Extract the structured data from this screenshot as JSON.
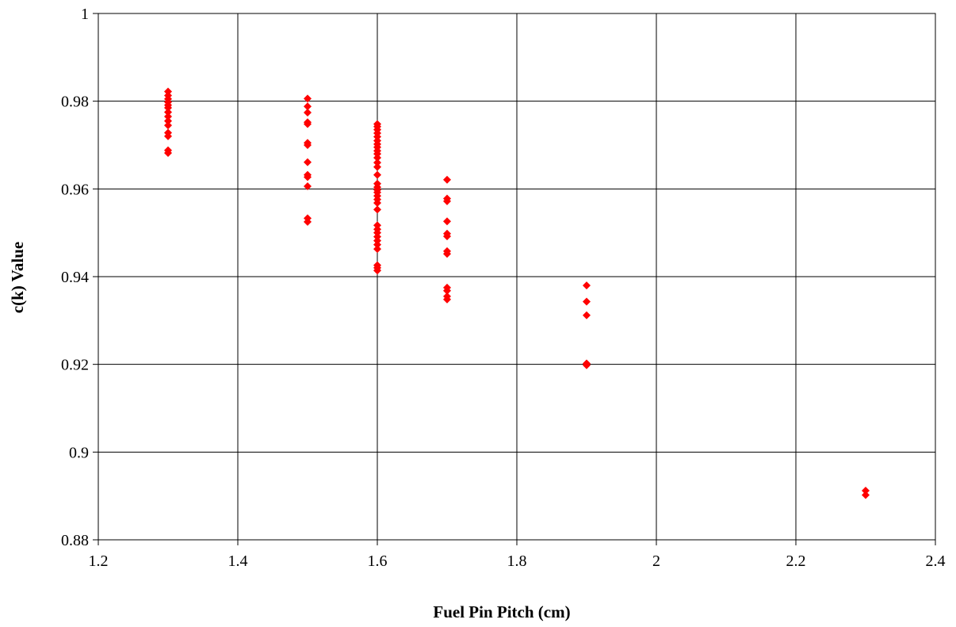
{
  "chart_data": {
    "type": "scatter",
    "title": "",
    "xlabel": "Fuel Pin Pitch (cm)",
    "ylabel": "c(k) Value",
    "xlim": [
      1.2,
      2.4
    ],
    "ylim": [
      0.88,
      1.0
    ],
    "x_ticks": [
      "1.2",
      "1.4",
      "1.6",
      "1.8",
      "2",
      "2.2",
      "2.4"
    ],
    "y_ticks": [
      "0.88",
      "0.9",
      "0.92",
      "0.94",
      "0.96",
      "0.98",
      "1"
    ],
    "grid": true,
    "legend": false,
    "marker": "diamond",
    "marker_color": "#ff0000",
    "series": [
      {
        "points": [
          [
            1.3,
            0.9822
          ],
          [
            1.3,
            0.9813
          ],
          [
            1.3,
            0.9805
          ],
          [
            1.3,
            0.9798
          ],
          [
            1.3,
            0.9791
          ],
          [
            1.3,
            0.9785
          ],
          [
            1.3,
            0.9775
          ],
          [
            1.3,
            0.9765
          ],
          [
            1.3,
            0.9755
          ],
          [
            1.3,
            0.9745
          ],
          [
            1.3,
            0.9728
          ],
          [
            1.3,
            0.972
          ],
          [
            1.3,
            0.9688
          ],
          [
            1.3,
            0.9682
          ],
          [
            1.5,
            0.9806
          ],
          [
            1.5,
            0.9788
          ],
          [
            1.5,
            0.9774
          ],
          [
            1.5,
            0.9752
          ],
          [
            1.5,
            0.9748
          ],
          [
            1.5,
            0.9705
          ],
          [
            1.5,
            0.97
          ],
          [
            1.5,
            0.9661
          ],
          [
            1.5,
            0.9632
          ],
          [
            1.5,
            0.9627
          ],
          [
            1.5,
            0.9606
          ],
          [
            1.5,
            0.9533
          ],
          [
            1.5,
            0.9525
          ],
          [
            1.6,
            0.9748
          ],
          [
            1.6,
            0.9742
          ],
          [
            1.6,
            0.9735
          ],
          [
            1.6,
            0.9727
          ],
          [
            1.6,
            0.9719
          ],
          [
            1.6,
            0.971
          ],
          [
            1.6,
            0.9702
          ],
          [
            1.6,
            0.9695
          ],
          [
            1.6,
            0.9687
          ],
          [
            1.6,
            0.968
          ],
          [
            1.6,
            0.9671
          ],
          [
            1.6,
            0.966
          ],
          [
            1.6,
            0.965
          ],
          [
            1.6,
            0.9632
          ],
          [
            1.6,
            0.9612
          ],
          [
            1.6,
            0.9604
          ],
          [
            1.6,
            0.9598
          ],
          [
            1.6,
            0.9592
          ],
          [
            1.6,
            0.9584
          ],
          [
            1.6,
            0.9576
          ],
          [
            1.6,
            0.9568
          ],
          [
            1.6,
            0.9553
          ],
          [
            1.6,
            0.9517
          ],
          [
            1.6,
            0.9508
          ],
          [
            1.6,
            0.95
          ],
          [
            1.6,
            0.9491
          ],
          [
            1.6,
            0.9482
          ],
          [
            1.6,
            0.9473
          ],
          [
            1.6,
            0.9463
          ],
          [
            1.6,
            0.9426
          ],
          [
            1.6,
            0.942
          ],
          [
            1.6,
            0.9414
          ],
          [
            1.7,
            0.9621
          ],
          [
            1.7,
            0.9578
          ],
          [
            1.7,
            0.9572
          ],
          [
            1.7,
            0.9526
          ],
          [
            1.7,
            0.9498
          ],
          [
            1.7,
            0.9492
          ],
          [
            1.7,
            0.9458
          ],
          [
            1.7,
            0.9452
          ],
          [
            1.7,
            0.9375
          ],
          [
            1.7,
            0.9368
          ],
          [
            1.7,
            0.9355
          ],
          [
            1.7,
            0.9348
          ],
          [
            1.9,
            0.938
          ],
          [
            1.9,
            0.9343
          ],
          [
            1.9,
            0.9312
          ],
          [
            1.9,
            0.9202
          ],
          [
            1.9,
            0.9198
          ],
          [
            2.3,
            0.8912
          ],
          [
            2.3,
            0.8902
          ]
        ]
      }
    ]
  }
}
